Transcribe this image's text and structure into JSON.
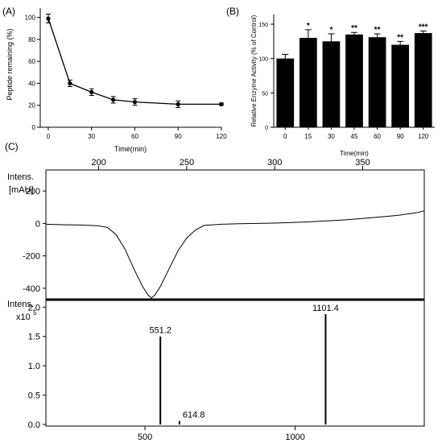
{
  "panels": {
    "a": "(A)",
    "b": "(B)",
    "c": "(C)"
  },
  "chart_data": [
    {
      "id": "A",
      "type": "line",
      "xlabel": "Time(min)",
      "ylabel": "Peptide remaining (%)",
      "xlim": [
        0,
        120
      ],
      "ylim": [
        0,
        110
      ],
      "xticks": [
        0,
        30,
        60,
        90,
        120
      ],
      "yticks": [
        0,
        20,
        40,
        60,
        80,
        100
      ],
      "series": [
        {
          "x": [
            0,
            15,
            30,
            45,
            60,
            90,
            120
          ],
          "y": [
            99,
            40,
            32,
            25,
            23,
            21,
            21
          ],
          "err": [
            4,
            3,
            3,
            3,
            3,
            3,
            1
          ]
        }
      ],
      "grid": false
    },
    {
      "id": "B",
      "type": "bar",
      "xlabel": "Time(min)",
      "ylabel": "Relative Enzyme Activity (% of Control)",
      "categories": [
        "0",
        "15",
        "30",
        "45",
        "60",
        "90",
        "120"
      ],
      "values": [
        100,
        130,
        125,
        135,
        131,
        120,
        137
      ],
      "err": [
        6,
        12,
        11,
        3,
        5,
        5,
        3
      ],
      "significance": [
        "",
        "*",
        "*",
        "**",
        "**",
        "**",
        "***"
      ],
      "ylim": [
        0,
        150
      ],
      "yticks": [
        0,
        50,
        100,
        150
      ],
      "bar_color": "#000000",
      "grid": false
    },
    {
      "id": "C-top",
      "type": "line",
      "ylabel": "Intens.",
      "yunit": "[mAU]",
      "xlim": [
        170,
        385
      ],
      "ylim": [
        -470,
        330
      ],
      "xticks": [
        200,
        250,
        300,
        350
      ],
      "yticks": [
        -400,
        -200,
        0,
        200
      ],
      "series": [
        {
          "x": [
            170,
            180,
            190,
            200,
            205,
            210,
            215,
            220,
            225,
            228,
            230,
            232,
            235,
            240,
            245,
            250,
            255,
            260,
            270,
            280,
            300,
            320,
            340,
            360,
            370,
            380,
            385
          ],
          "y": [
            -5,
            -8,
            -10,
            -15,
            -25,
            -70,
            -160,
            -280,
            -390,
            -440,
            -460,
            -440,
            -390,
            -280,
            -170,
            -90,
            -40,
            -12,
            -5,
            -2,
            2,
            10,
            22,
            40,
            50,
            65,
            78
          ]
        }
      ],
      "grid": false
    },
    {
      "id": "C-bottom",
      "type": "bar",
      "ylabel": "Intens.",
      "yunit": "x10",
      "yexp": "5",
      "xlim": [
        170,
        1430
      ],
      "ylim": [
        0,
        2.1
      ],
      "xticks": [
        500,
        1000
      ],
      "yticks": [
        "0.0",
        "0.5",
        "1.0",
        "1.5",
        "2.0"
      ],
      "peaks": [
        {
          "mz": 551.2,
          "intensity": 1.5,
          "label": "551.2"
        },
        {
          "mz": 614.8,
          "intensity": 0.06,
          "label": "614.8"
        },
        {
          "mz": 1101.4,
          "intensity": 1.88,
          "label": "1101.4"
        }
      ],
      "grid": false
    }
  ]
}
